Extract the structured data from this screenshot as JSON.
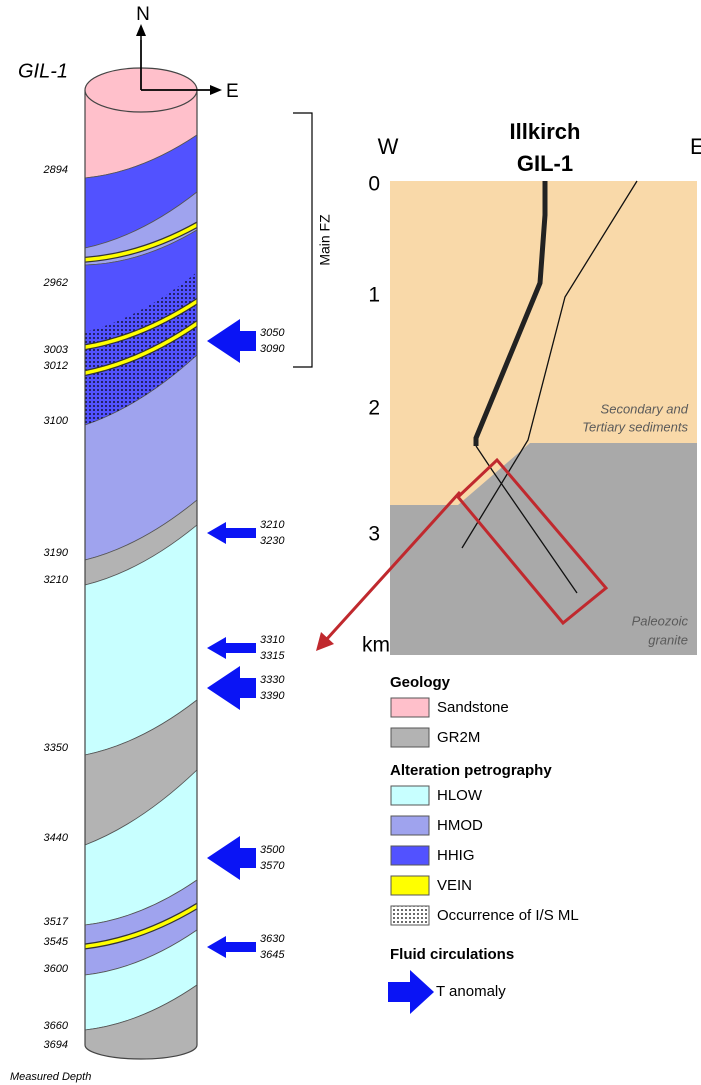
{
  "header": {
    "well": "GIL-1",
    "north": "N",
    "east": "E"
  },
  "depths": [
    "2894",
    "2962",
    "3003",
    "3012",
    "3100",
    "3190",
    "3210",
    "3350",
    "3440",
    "3517",
    "3545",
    "3600",
    "3660",
    "3694"
  ],
  "depth_caption": "Measured Depth",
  "fault_zone": "Main FZ",
  "anomalies": [
    [
      "3050",
      "3090"
    ],
    [
      "3210",
      "3230"
    ],
    [
      "3310",
      "3315"
    ],
    [
      "3330",
      "3390"
    ],
    [
      "3500",
      "3570"
    ],
    [
      "3630",
      "3645"
    ]
  ],
  "section": {
    "title": "Illkirch",
    "well": "GIL-1",
    "west": "W",
    "east": "E",
    "depth_ticks": [
      "0",
      "1",
      "2",
      "3"
    ],
    "depth_unit": "km",
    "sediments": [
      "Secondary and",
      "Tertiary sediments"
    ],
    "granite": [
      "Paleozoic",
      "granite"
    ]
  },
  "legend": {
    "geology": {
      "title": "Geology",
      "items": [
        "Sandstone",
        "GR2M"
      ]
    },
    "alteration": {
      "title": "Alteration petrography",
      "items": [
        "HLOW",
        "HMOD",
        "HHIG",
        "VEIN",
        "Occurrence of I/S ML"
      ]
    },
    "fluids": {
      "title": "Fluid circulations",
      "items": [
        "T anomaly"
      ]
    }
  }
}
